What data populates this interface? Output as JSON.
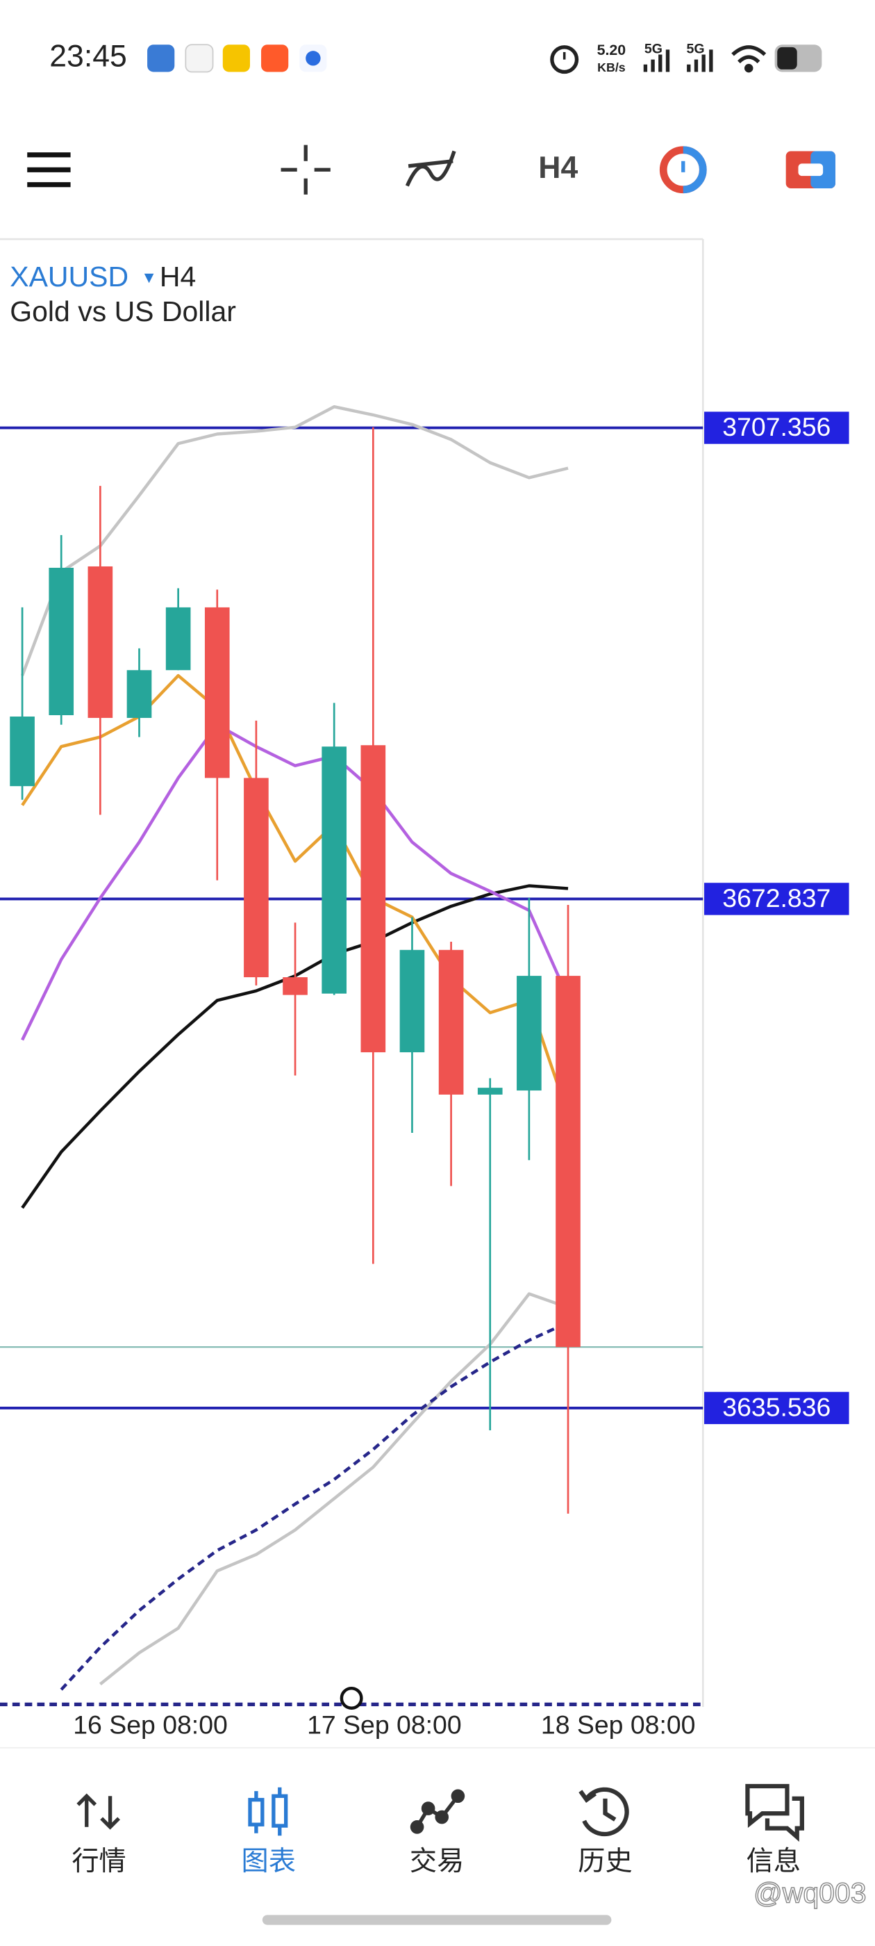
{
  "status_bar": {
    "time": "23:45",
    "speed": "5.20",
    "speed_unit": "KB/s",
    "network": [
      "5G",
      "5G"
    ]
  },
  "toolbar": {
    "timeframe": "H4"
  },
  "chart_data": {
    "type": "candlestick",
    "symbol": "XAUUSD",
    "timeframe": "H4",
    "description": "Gold vs US Dollar",
    "open": [
      3681.1,
      3686.3,
      3697.2,
      3686.1,
      3689.6,
      3694.2,
      3681.7,
      3667.1,
      3665.9,
      3684.1,
      3661.6,
      3669.1,
      3658.5,
      3658.8,
      3667.2
    ],
    "high": [
      3694.2,
      3699.5,
      3703.1,
      3691.2,
      3695.6,
      3695.5,
      3685.9,
      3671.1,
      3687.2,
      3707.4,
      3671.5,
      3669.7,
      3659.7,
      3672.9,
      3672.4
    ],
    "low": [
      3680.1,
      3685.6,
      3679.0,
      3684.7,
      3689.6,
      3674.2,
      3666.5,
      3659.9,
      3665.8,
      3646.1,
      3655.7,
      3651.8,
      3633.9,
      3653.7,
      3627.8
    ],
    "close": [
      3686.2,
      3697.1,
      3686.1,
      3689.6,
      3694.2,
      3681.7,
      3667.1,
      3665.8,
      3684.0,
      3661.6,
      3669.1,
      3658.5,
      3659.0,
      3667.2,
      3640.0
    ],
    "up_color": "#26a69a",
    "down_color": "#ef5350",
    "series": [
      {
        "color": "#c4c4c4",
        "values": [
          3689.2,
          3696.8,
          3698.7,
          3702.4,
          3706.2,
          3706.9,
          3707.1,
          3707.4,
          3708.9,
          3708.3,
          3707.6,
          3706.5,
          3704.8,
          3703.7,
          3704.4
        ]
      },
      {
        "color": "#c4c4c4",
        "values": [
          null,
          null,
          3615.3,
          3617.6,
          3619.4,
          3623.6,
          3624.8,
          3626.6,
          3628.9,
          3631.2,
          3634.4,
          3637.5,
          3640.2,
          3643.9,
          3642.9
        ]
      },
      {
        "color": "#111111",
        "values": [
          3650.2,
          3654.3,
          3657.3,
          3660.2,
          3662.9,
          3665.4,
          3666.1,
          3667.2,
          3668.8,
          3669.7,
          3671.1,
          3672.3,
          3673.2,
          3673.8,
          3673.6
        ]
      },
      {
        "color": "#e8a030",
        "values": [
          3679.7,
          3684.0,
          3684.7,
          3686.2,
          3689.2,
          3686.8,
          3680.8,
          3675.6,
          3678.3,
          3672.9,
          3671.5,
          3667.0,
          3664.5,
          3665.4,
          3657.0
        ]
      },
      {
        "color": "#b461e0",
        "values": [
          3662.5,
          3668.4,
          3672.9,
          3677.0,
          3681.7,
          3685.6,
          3684.0,
          3682.6,
          3683.3,
          3680.8,
          3677.0,
          3674.7,
          3673.4,
          3672.0,
          3665.6
        ]
      },
      {
        "color": "#26268a",
        "dashed": true,
        "values": [
          null,
          3614.9,
          3618.0,
          3620.7,
          3623.0,
          3625.1,
          3626.6,
          3628.5,
          3630.3,
          3632.5,
          3635.0,
          3637.1,
          3638.9,
          3640.5,
          3641.8
        ]
      }
    ],
    "levels": [
      3707.356,
      3672.837,
      3635.536
    ],
    "level_color": "#2020b0",
    "level_label_color": "#2222e0",
    "last_price": 3640.0,
    "last_price_color": "#7fb8b0",
    "xticks": [
      "16 Sep 08:00",
      "17 Sep 08:00",
      "18 Sep 08:00"
    ],
    "ylim": [
      3614,
      3721
    ]
  },
  "nav": {
    "items": [
      "行情",
      "图表",
      "交易",
      "历史",
      "信息"
    ],
    "active": 1
  },
  "watermark": "@wq003"
}
